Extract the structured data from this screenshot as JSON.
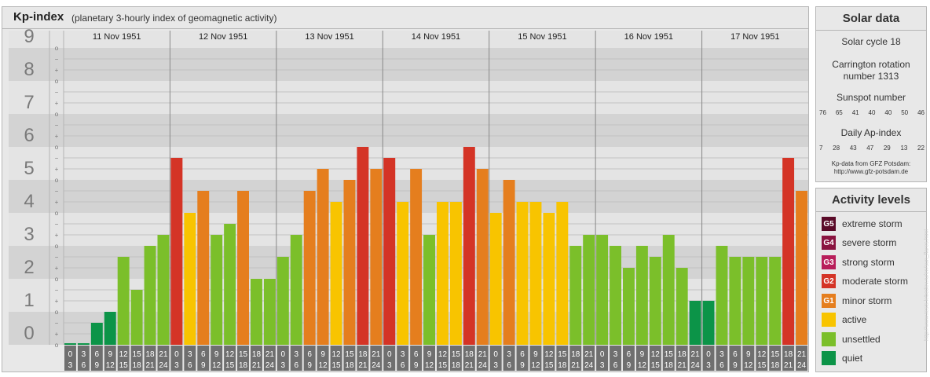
{
  "header": {
    "title": "Kp-index",
    "subtitle": "(planetary 3-hourly index of geomagnetic activity)"
  },
  "solar": {
    "title": "Solar data",
    "cycle": "Solar cycle 18",
    "carrington_line1": "Carrington rotation",
    "carrington_line2": "number 1313",
    "sunspot_label": "Sunspot number",
    "sunspot_values": [
      "76",
      "65",
      "41",
      "40",
      "40",
      "50",
      "46"
    ],
    "ap_label": "Daily Ap-index",
    "ap_values": [
      "7",
      "28",
      "43",
      "47",
      "29",
      "13",
      "22"
    ],
    "source_line1": "Kp-data from GFZ Potsdam:",
    "source_line2": "http://www.gfz-potsdam.de"
  },
  "activity": {
    "title": "Activity levels",
    "levels": [
      {
        "code": "G5",
        "label": "extreme storm",
        "color": "#5a0a28"
      },
      {
        "code": "G4",
        "label": "severe storm",
        "color": "#8a1440"
      },
      {
        "code": "G3",
        "label": "strong storm",
        "color": "#b81e5a"
      },
      {
        "code": "G2",
        "label": "moderate storm",
        "color": "#d43426"
      },
      {
        "code": "G1",
        "label": "minor storm",
        "color": "#e57e1e"
      },
      {
        "code": "",
        "label": "active",
        "color": "#f8c400"
      },
      {
        "code": "",
        "label": "unsettled",
        "color": "#7bbf2a"
      },
      {
        "code": "",
        "label": "quiet",
        "color": "#0c9448"
      }
    ]
  },
  "watermark": "http://www.tesis.lebedev.ru/en/sun_flares.html",
  "chart_data": {
    "type": "bar",
    "ylim": [
      0,
      9
    ],
    "y_ticks": [
      "0",
      "1",
      "2",
      "3",
      "4",
      "5",
      "6",
      "7",
      "8",
      "9"
    ],
    "minor_ticks": [
      "o",
      "+",
      "−"
    ],
    "days": [
      "11 Nov 1951",
      "12 Nov 1951",
      "13 Nov 1951",
      "14 Nov 1951",
      "15 Nov 1951",
      "16 Nov 1951",
      "17 Nov 1951"
    ],
    "interval_start": [
      "0",
      "3",
      "6",
      "9",
      "12",
      "15",
      "18",
      "21"
    ],
    "interval_end": [
      "3",
      "6",
      "9",
      "12",
      "15",
      "18",
      "21",
      "24"
    ],
    "values": [
      0,
      0,
      0.667,
      1,
      2.667,
      1.667,
      3,
      3.333,
      5.667,
      4,
      4.667,
      3.333,
      3.667,
      4.667,
      2,
      2,
      2.667,
      3.333,
      4.667,
      5.333,
      4.333,
      5,
      6,
      5.333,
      5.667,
      4.333,
      5.333,
      3.333,
      4.333,
      4.333,
      6,
      5.333,
      4,
      5,
      4.333,
      4.333,
      4,
      4.333,
      3,
      3.333,
      3.333,
      3,
      2.333,
      3,
      2.667,
      3.333,
      2.333,
      1.333,
      1.333,
      3,
      2.667,
      2.667,
      2.667,
      2.667,
      5.667,
      4.667
    ]
  }
}
